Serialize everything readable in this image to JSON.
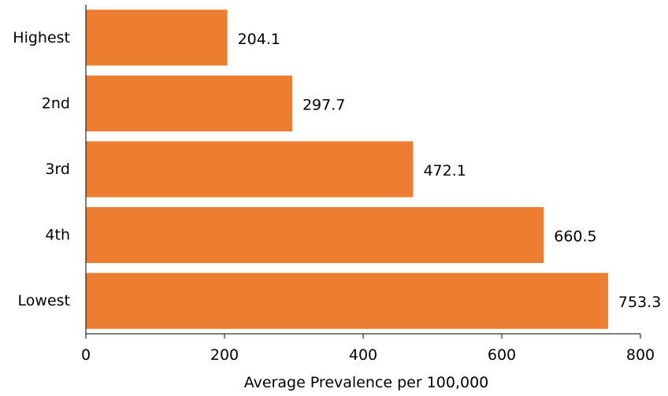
{
  "chart_data": {
    "type": "bar",
    "orientation": "horizontal",
    "categories": [
      "Highest",
      "2nd",
      "3rd",
      "4th",
      "Lowest"
    ],
    "values": [
      204.1,
      297.7,
      472.1,
      660.5,
      753.3
    ],
    "value_labels": [
      "204.1",
      "297.7",
      "472.1",
      "660.5",
      "753.3"
    ],
    "title": "",
    "xlabel": "Average Prevalence per 100,000",
    "ylabel": "",
    "xlim": [
      0,
      800
    ],
    "xticks": [
      0,
      200,
      400,
      600,
      800
    ],
    "xtick_labels": [
      "0",
      "200",
      "400",
      "600",
      "800"
    ],
    "grid": false,
    "legend": "none",
    "bar_color": "#ED7D31"
  }
}
